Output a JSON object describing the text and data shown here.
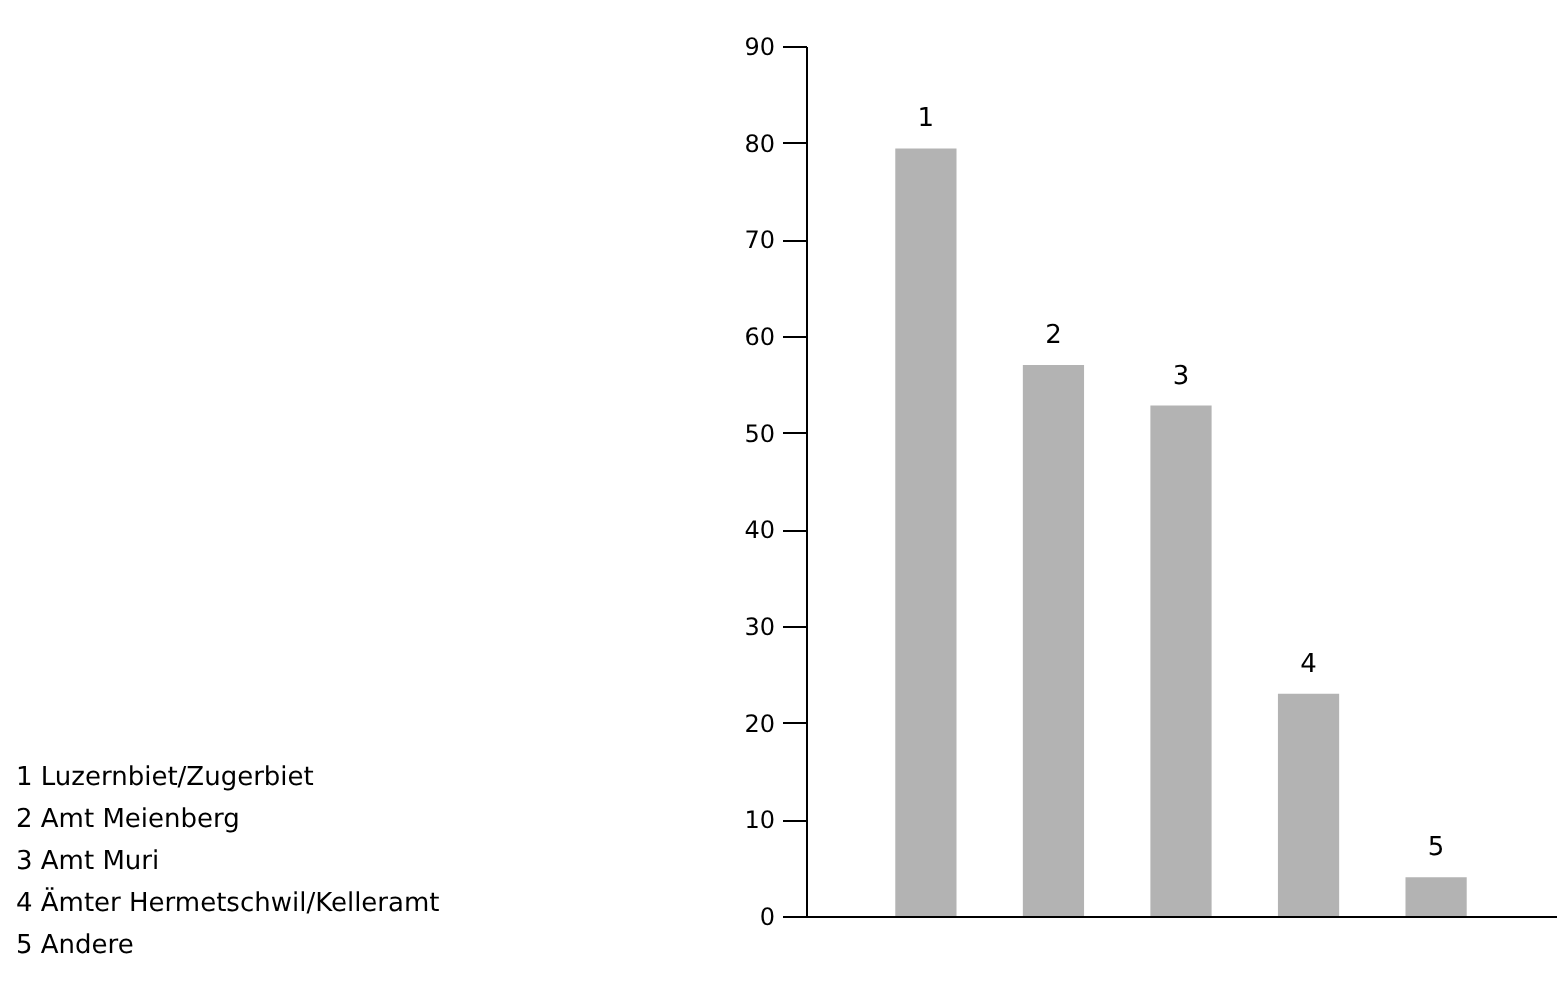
{
  "chart_data": {
    "type": "bar",
    "categories": [
      "1",
      "2",
      "3",
      "4",
      "5"
    ],
    "values": [
      79.4,
      57,
      52.8,
      23,
      4
    ],
    "color": "#b3b3b3",
    "ylim": [
      0,
      90
    ],
    "yticks": [
      0,
      10,
      20,
      30,
      40,
      50,
      60,
      70,
      80,
      90
    ],
    "grid": false,
    "tick_labels": "y",
    "annotations": [
      "1 Luzernbiet/Zugerbiet",
      "2 Amt Meienberg",
      "3 Amt Muri",
      "4 Ämter Hermetschwil/Kelleramt",
      "5 Andere"
    ]
  }
}
